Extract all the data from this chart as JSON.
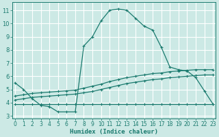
{
  "title": "",
  "xlabel": "Humidex (Indice chaleur)",
  "ylabel": "",
  "bg_color": "#cce9e5",
  "grid_color": "#ffffff",
  "line_color": "#1a7a6e",
  "x_ticks": [
    0,
    1,
    2,
    3,
    4,
    5,
    6,
    7,
    8,
    9,
    10,
    11,
    12,
    13,
    14,
    15,
    16,
    17,
    18,
    19,
    20,
    21,
    22,
    23
  ],
  "ylim": [
    2.8,
    11.6
  ],
  "xlim": [
    -0.3,
    23.3
  ],
  "yticks": [
    3,
    4,
    5,
    6,
    7,
    8,
    9,
    10,
    11
  ],
  "series1_x": [
    0,
    1,
    2,
    3,
    4,
    5,
    6,
    7,
    8,
    9,
    10,
    11,
    12,
    13,
    14,
    15,
    16,
    17,
    18,
    19,
    20,
    21,
    22,
    23
  ],
  "series1_y": [
    5.5,
    5.0,
    4.3,
    3.8,
    3.7,
    3.3,
    3.3,
    3.3,
    8.3,
    9.0,
    10.2,
    11.0,
    11.1,
    11.0,
    10.4,
    9.8,
    9.5,
    8.2,
    6.7,
    6.5,
    6.4,
    5.9,
    4.9,
    3.9
  ],
  "series2_x": [
    0,
    1,
    2,
    3,
    4,
    5,
    6,
    7,
    8,
    9,
    10,
    11,
    12,
    13,
    14,
    15,
    16,
    17,
    18,
    19,
    20,
    21,
    22,
    23
  ],
  "series2_y": [
    3.9,
    3.9,
    3.9,
    3.9,
    3.9,
    3.9,
    3.9,
    3.9,
    3.9,
    3.9,
    3.9,
    3.9,
    3.9,
    3.9,
    3.9,
    3.9,
    3.9,
    3.9,
    3.9,
    3.9,
    3.9,
    3.9,
    3.9,
    3.9
  ],
  "series3_x": [
    0,
    1,
    2,
    3,
    4,
    5,
    6,
    7,
    8,
    9,
    10,
    11,
    12,
    13,
    14,
    15,
    16,
    17,
    18,
    19,
    20,
    21,
    22,
    23
  ],
  "series3_y": [
    4.2,
    4.3,
    4.4,
    4.45,
    4.5,
    4.55,
    4.6,
    4.65,
    4.75,
    4.85,
    5.0,
    5.15,
    5.3,
    5.45,
    5.55,
    5.65,
    5.75,
    5.8,
    5.9,
    5.95,
    6.0,
    6.05,
    6.1,
    6.1
  ],
  "series4_x": [
    0,
    1,
    2,
    3,
    4,
    5,
    6,
    7,
    8,
    9,
    10,
    11,
    12,
    13,
    14,
    15,
    16,
    17,
    18,
    19,
    20,
    21,
    22,
    23
  ],
  "series4_y": [
    4.5,
    4.6,
    4.7,
    4.75,
    4.8,
    4.85,
    4.9,
    4.95,
    5.1,
    5.25,
    5.4,
    5.6,
    5.75,
    5.9,
    6.0,
    6.1,
    6.2,
    6.25,
    6.35,
    6.4,
    6.45,
    6.5,
    6.5,
    6.5
  ]
}
